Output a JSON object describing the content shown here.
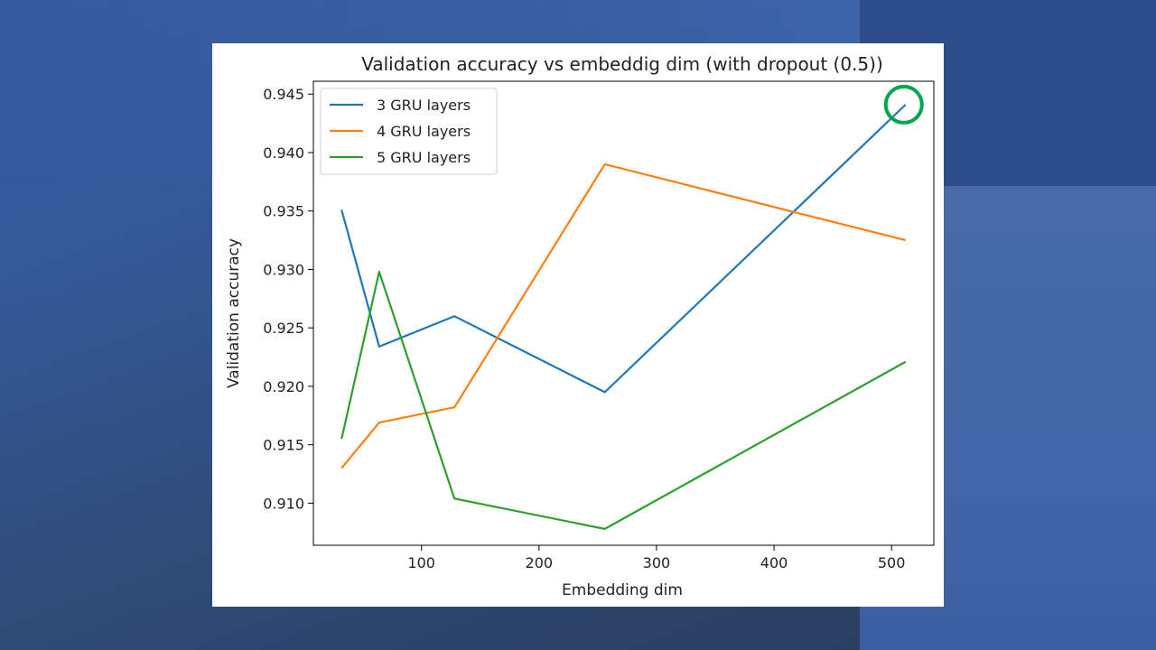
{
  "chart_data": {
    "type": "line",
    "title": "Validation accuracy vs embeddig dim (with dropout (0.5))",
    "xlabel": "Embedding dim",
    "ylabel": "Validation accuracy",
    "xlim": [
      8,
      536
    ],
    "ylim": [
      0.9064,
      0.9461
    ],
    "x_ticks": [
      100,
      200,
      300,
      400,
      500
    ],
    "y_ticks": [
      0.91,
      0.915,
      0.92,
      0.925,
      0.93,
      0.935,
      0.94,
      0.945
    ],
    "x_tick_labels": [
      "100",
      "200",
      "300",
      "400",
      "500"
    ],
    "y_tick_labels": [
      "0.910",
      "0.915",
      "0.920",
      "0.925",
      "0.930",
      "0.935",
      "0.940",
      "0.945"
    ],
    "grid": false,
    "legend_position": "upper-left",
    "x": [
      32,
      64,
      128,
      256,
      512
    ],
    "series": [
      {
        "name": "3 GRU layers",
        "color": "#1f77b4",
        "values": [
          0.9351,
          0.9234,
          0.926,
          0.9195,
          0.9441
        ]
      },
      {
        "name": "4 GRU layers",
        "color": "#ff7f0e",
        "values": [
          0.913,
          0.9169,
          0.9182,
          0.939,
          0.9325
        ]
      },
      {
        "name": "5 GRU layers",
        "color": "#2ca02c",
        "values": [
          0.9155,
          0.9298,
          0.9104,
          0.9078,
          0.9221
        ]
      }
    ],
    "annotation": {
      "type": "circle",
      "color": "#00a550",
      "x": 512,
      "y": 0.9441
    }
  }
}
